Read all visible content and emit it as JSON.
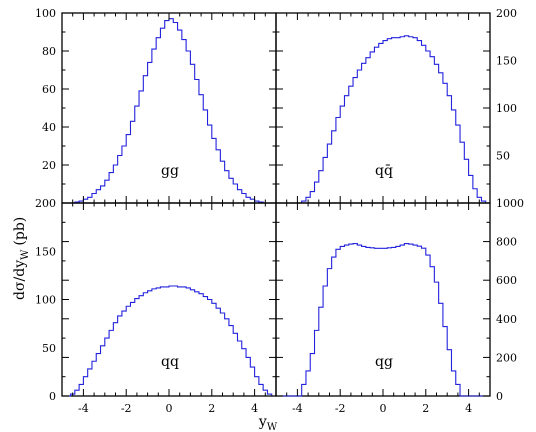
{
  "chart_data": [
    {
      "type": "line",
      "panel": "top-left",
      "label": "gg",
      "ylim": [
        0,
        100
      ],
      "yticks": [
        20,
        40,
        60,
        80,
        100
      ],
      "x_range": [
        -5,
        5
      ],
      "bin_width": 0.2,
      "series": [
        {
          "name": "gg",
          "x": [
            -5,
            -4.8,
            -4.6,
            -4.4,
            -4.2,
            -4,
            -3.8,
            -3.6,
            -3.4,
            -3.2,
            -3,
            -2.8,
            -2.6,
            -2.4,
            -2.2,
            -2,
            -1.8,
            -1.6,
            -1.4,
            -1.2,
            -1,
            -0.8,
            -0.6,
            -0.4,
            -0.2,
            0,
            0.2,
            0.4,
            0.6,
            0.8,
            1,
            1.2,
            1.4,
            1.6,
            1.8,
            2,
            2.2,
            2.4,
            2.6,
            2.8,
            3,
            3.2,
            3.4,
            3.6,
            3.8,
            4,
            4.2,
            4.4,
            4.6,
            4.8
          ],
          "y": [
            0,
            0,
            0,
            0.5,
            1,
            2,
            3,
            5,
            7,
            9,
            12,
            16,
            20,
            25,
            30,
            36,
            43,
            51,
            59,
            67,
            74,
            81,
            87,
            92,
            96,
            97,
            95,
            91,
            86,
            80,
            73,
            65,
            57,
            49,
            41,
            34,
            28,
            22,
            17,
            13,
            10,
            7,
            5,
            3,
            2,
            1,
            0.5,
            0,
            0,
            0
          ]
        }
      ]
    },
    {
      "type": "line",
      "panel": "top-right",
      "label": "qq̄",
      "ylim": [
        0,
        200
      ],
      "yticks": [
        50,
        100,
        150,
        200
      ],
      "x_range": [
        -5,
        5
      ],
      "bin_width": 0.2,
      "series": [
        {
          "name": "qq̄",
          "x": [
            -5,
            -4.8,
            -4.6,
            -4.4,
            -4.2,
            -4,
            -3.8,
            -3.6,
            -3.4,
            -3.2,
            -3,
            -2.8,
            -2.6,
            -2.4,
            -2.2,
            -2,
            -1.8,
            -1.6,
            -1.4,
            -1.2,
            -1,
            -0.8,
            -0.6,
            -0.4,
            -0.2,
            0,
            0.2,
            0.4,
            0.6,
            0.8,
            1,
            1.2,
            1.4,
            1.6,
            1.8,
            2,
            2.2,
            2.4,
            2.6,
            2.8,
            3,
            3.2,
            3.4,
            3.6,
            3.8,
            4,
            4.2,
            4.4,
            4.6,
            4.8
          ],
          "y": [
            0,
            0,
            0,
            0,
            0,
            0,
            2,
            6,
            12,
            22,
            34,
            48,
            62,
            76,
            90,
            102,
            113,
            123,
            132,
            140,
            147,
            153,
            159,
            164,
            168,
            171,
            173,
            174,
            174,
            175,
            176,
            175,
            174,
            171,
            166,
            160,
            154,
            146,
            137,
            126,
            113,
            98,
            82,
            64,
            46,
            29,
            15,
            6,
            2,
            0
          ]
        }
      ]
    },
    {
      "type": "line",
      "panel": "bottom-left",
      "label": "qq",
      "ylim": [
        0,
        200
      ],
      "yticks": [
        0,
        50,
        100,
        150,
        200
      ],
      "x_range": [
        -5,
        5
      ],
      "bin_width": 0.2,
      "series": [
        {
          "name": "qq",
          "x": [
            -5,
            -4.8,
            -4.6,
            -4.4,
            -4.2,
            -4,
            -3.8,
            -3.6,
            -3.4,
            -3.2,
            -3,
            -2.8,
            -2.6,
            -2.4,
            -2.2,
            -2,
            -1.8,
            -1.6,
            -1.4,
            -1.2,
            -1,
            -0.8,
            -0.6,
            -0.4,
            -0.2,
            0,
            0.2,
            0.4,
            0.6,
            0.8,
            1,
            1.2,
            1.4,
            1.6,
            1.8,
            2,
            2.2,
            2.4,
            2.6,
            2.8,
            3,
            3.2,
            3.4,
            3.6,
            3.8,
            4,
            4.2,
            4.4,
            4.6,
            4.8
          ],
          "y": [
            0,
            0,
            2,
            6,
            12,
            20,
            28,
            36,
            44,
            52,
            60,
            68,
            76,
            83,
            88,
            93,
            97,
            101,
            104,
            107,
            109,
            111,
            112,
            113,
            113,
            114,
            114,
            113,
            113,
            112,
            110,
            108,
            106,
            103,
            100,
            96,
            91,
            86,
            80,
            73,
            65,
            57,
            49,
            40,
            30,
            20,
            12,
            6,
            2,
            0
          ]
        }
      ]
    },
    {
      "type": "line",
      "panel": "bottom-right",
      "label": "qg",
      "ylim": [
        0,
        1000
      ],
      "yticks": [
        0,
        200,
        400,
        600,
        800,
        1000
      ],
      "x_range": [
        -5,
        5
      ],
      "bin_width": 0.2,
      "series": [
        {
          "name": "qg",
          "x": [
            -5,
            -4.8,
            -4.6,
            -4.4,
            -4.2,
            -4,
            -3.8,
            -3.6,
            -3.4,
            -3.2,
            -3,
            -2.8,
            -2.6,
            -2.4,
            -2.2,
            -2,
            -1.8,
            -1.6,
            -1.4,
            -1.2,
            -1,
            -0.8,
            -0.6,
            -0.4,
            -0.2,
            0,
            0.2,
            0.4,
            0.6,
            0.8,
            1,
            1.2,
            1.4,
            1.6,
            1.8,
            2,
            2.2,
            2.4,
            2.6,
            2.8,
            3,
            3.2,
            3.4,
            3.6,
            3.8,
            4,
            4.2,
            4.4,
            4.6,
            4.8
          ],
          "y": [
            0,
            0,
            0,
            0,
            0,
            0,
            60,
            130,
            220,
            340,
            460,
            570,
            660,
            720,
            760,
            775,
            782,
            787,
            790,
            782,
            775,
            770,
            768,
            765,
            765,
            765,
            768,
            770,
            775,
            782,
            790,
            787,
            782,
            776,
            766,
            730,
            670,
            590,
            480,
            360,
            240,
            130,
            60,
            0,
            0,
            0,
            0,
            0,
            0,
            0
          ]
        }
      ]
    }
  ],
  "axes": {
    "xlabel": "y",
    "xlabel_sub": "W",
    "ylabel": "dσ/dy",
    "ylabel_sub": "W",
    "ylabel_unit": "(pb)",
    "xticks": [
      "-4",
      "-2",
      "0",
      "2",
      "4"
    ],
    "xtick_values": [
      -4,
      -2,
      0,
      2,
      4
    ]
  },
  "colors": {
    "histogram": "#2222dd",
    "axes": "#000000"
  }
}
